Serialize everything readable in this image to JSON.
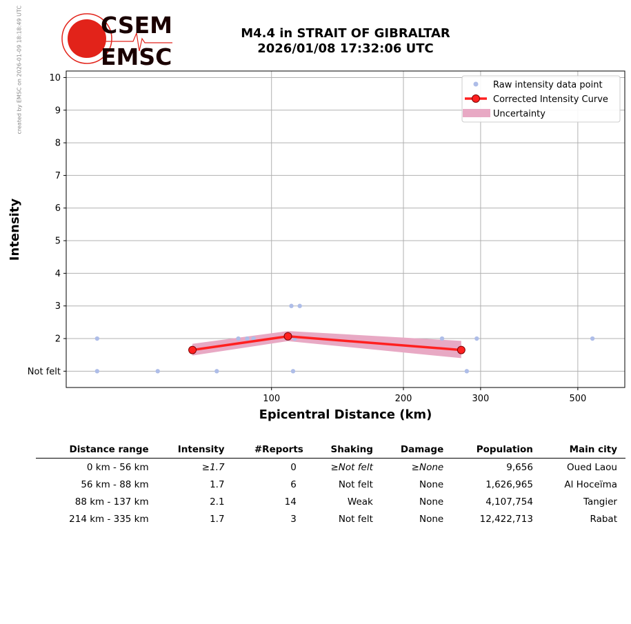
{
  "credit": "created by EMSC on 2026-01-09 18:18:49 UTC",
  "logo": {
    "top_text": "CSEM",
    "bottom_text": "EMSC",
    "color": "#e2231a",
    "text_color": "#1a0000"
  },
  "title": {
    "line1": "M4.4 in STRAIT OF GIBRALTAR",
    "line2": "2026/01/08 17:32:06 UTC"
  },
  "chart_data": {
    "type": "scatter",
    "xlabel": "Epicentral Distance (km)",
    "ylabel": "Intensity",
    "x_scale": "log",
    "xlim": [
      34,
      640
    ],
    "ylim": [
      0.5,
      10.2
    ],
    "x_ticks": [
      100,
      200,
      300,
      500
    ],
    "y_ticks": [
      {
        "value": 1,
        "label": "Not felt"
      },
      {
        "value": 2,
        "label": "2"
      },
      {
        "value": 3,
        "label": "3"
      },
      {
        "value": 4,
        "label": "4"
      },
      {
        "value": 5,
        "label": "5"
      },
      {
        "value": 6,
        "label": "6"
      },
      {
        "value": 7,
        "label": "7"
      },
      {
        "value": 8,
        "label": "8"
      },
      {
        "value": 9,
        "label": "9"
      },
      {
        "value": 10,
        "label": "10"
      }
    ],
    "grid": true,
    "legend_position": "top-right",
    "series": [
      {
        "name": "Raw intensity data point",
        "kind": "points",
        "color": "#aebde8",
        "points": [
          [
            40,
            2
          ],
          [
            40,
            1
          ],
          [
            55,
            1
          ],
          [
            75,
            1
          ],
          [
            84,
            2
          ],
          [
            88,
            2
          ],
          [
            91,
            2
          ],
          [
            111,
            3
          ],
          [
            113,
            2
          ],
          [
            112,
            1
          ],
          [
            116,
            3
          ],
          [
            245,
            2
          ],
          [
            279,
            1
          ],
          [
            294,
            2
          ],
          [
            540,
            2
          ]
        ]
      },
      {
        "name": "Corrected Intensity Curve",
        "kind": "line",
        "color": "#ff2020",
        "marker_fill": "#ff2020",
        "marker_edge": "#7a0000",
        "points": [
          [
            66,
            1.65
          ],
          [
            109,
            2.07
          ],
          [
            271,
            1.65
          ]
        ]
      },
      {
        "name": "Uncertainty",
        "kind": "band",
        "color": "#e8a9c4",
        "upper": [
          [
            66,
            1.84
          ],
          [
            109,
            2.23
          ],
          [
            271,
            1.93
          ]
        ],
        "lower": [
          [
            66,
            1.48
          ],
          [
            109,
            1.92
          ],
          [
            271,
            1.4
          ]
        ]
      }
    ]
  },
  "table": {
    "headers": [
      "Distance range",
      "Intensity",
      "#Reports",
      "Shaking",
      "Damage",
      "Population",
      "Main city"
    ],
    "rows": [
      [
        "0 km -   56 km",
        "≥1.7",
        "0",
        "≥Not felt",
        "≥None",
        "9,656",
        "Oued Laou"
      ],
      [
        "56 km -   88 km",
        "1.7",
        "6",
        "Not felt",
        "None",
        "1,626,965",
        "Al Hoceïma"
      ],
      [
        "88 km -  137 km",
        "2.1",
        "14",
        "Weak",
        "None",
        "4,107,754",
        "Tangier"
      ],
      [
        "214 km -  335 km",
        "1.7",
        "3",
        "Not felt",
        "None",
        "12,422,713",
        "Rabat"
      ]
    ],
    "italic_cells": [
      [
        0,
        1
      ],
      [
        0,
        3
      ],
      [
        0,
        4
      ]
    ]
  }
}
